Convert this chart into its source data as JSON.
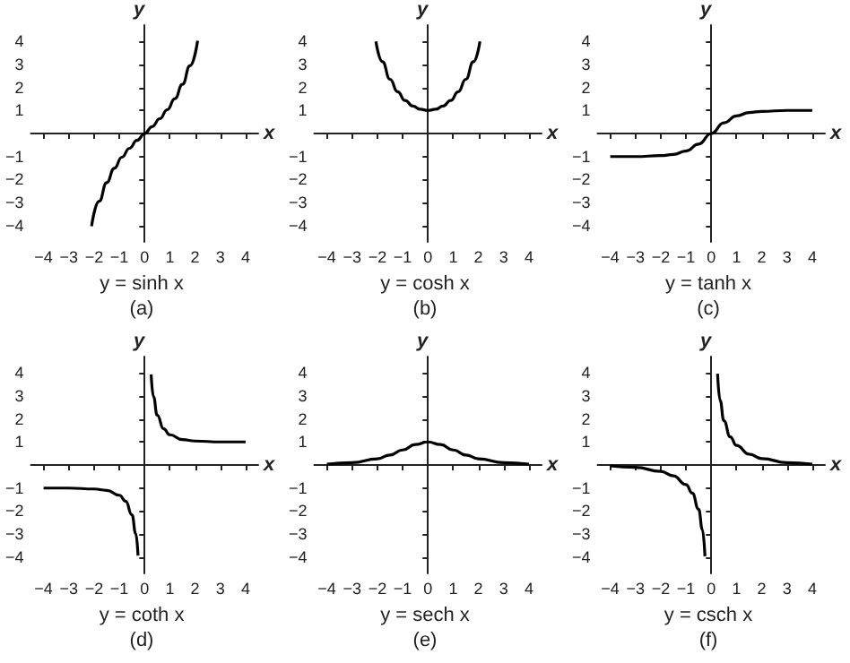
{
  "chart_data": [
    {
      "type": "line",
      "title": "y = sinh x",
      "subtitle": "(a)",
      "xlabel": "x",
      "ylabel": "y",
      "marker": "none",
      "xlim": [
        -4.5,
        4.5
      ],
      "ylim": [
        -4.7,
        4.7
      ],
      "xticks": [
        -4,
        -3,
        -2,
        -1,
        0,
        1,
        2,
        3,
        4
      ],
      "yticks": [
        -4,
        -3,
        -2,
        -1,
        1,
        2,
        3,
        4
      ],
      "x": [
        -2.1,
        -1.8,
        -1.5,
        -1.2,
        -0.9,
        -0.6,
        -0.3,
        0,
        0.3,
        0.6,
        0.9,
        1.2,
        1.5,
        1.8,
        2.1
      ],
      "series": [
        {
          "color": "#000000",
          "values": [
            -4.02,
            -2.94,
            -2.13,
            -1.51,
            -1.03,
            -0.64,
            -0.3,
            0,
            0.3,
            0.64,
            1.03,
            1.51,
            2.13,
            2.94,
            4.02
          ]
        }
      ]
    },
    {
      "type": "line",
      "title": "y = cosh x",
      "subtitle": "(b)",
      "xlabel": "x",
      "ylabel": "y",
      "marker": "none",
      "xlim": [
        -4.5,
        4.5
      ],
      "ylim": [
        -4.7,
        4.7
      ],
      "xticks": [
        -4,
        -3,
        -2,
        -1,
        0,
        1,
        2,
        3,
        4
      ],
      "yticks": [
        -4,
        -3,
        -2,
        -1,
        1,
        2,
        3,
        4
      ],
      "x": [
        -2.06,
        -1.8,
        -1.5,
        -1.2,
        -0.9,
        -0.6,
        -0.3,
        0,
        0.3,
        0.6,
        0.9,
        1.2,
        1.5,
        1.8,
        2.06
      ],
      "series": [
        {
          "color": "#000000",
          "values": [
            3.99,
            3.11,
            2.35,
            1.81,
            1.43,
            1.19,
            1.05,
            1,
            1.05,
            1.19,
            1.43,
            1.81,
            2.35,
            3.11,
            3.99
          ]
        }
      ]
    },
    {
      "type": "line",
      "title": "y = tanh x",
      "subtitle": "(c)",
      "xlabel": "x",
      "ylabel": "y",
      "marker": "none",
      "xlim": [
        -4.5,
        4.5
      ],
      "ylim": [
        -4.7,
        4.7
      ],
      "xticks": [
        -4,
        -3,
        -2,
        -1,
        0,
        1,
        2,
        3,
        4
      ],
      "yticks": [
        -4,
        -3,
        -2,
        -1,
        1,
        2,
        3,
        4
      ],
      "x": [
        -4,
        -3,
        -2,
        -1.5,
        -1,
        -0.5,
        0,
        0.5,
        1,
        1.5,
        2,
        3,
        4
      ],
      "series": [
        {
          "color": "#000000",
          "values": [
            -1,
            -1,
            -0.96,
            -0.91,
            -0.76,
            -0.46,
            0,
            0.46,
            0.76,
            0.91,
            0.96,
            1,
            1
          ]
        }
      ]
    },
    {
      "type": "line",
      "title": "y = coth x",
      "subtitle": "(d)",
      "xlabel": "x",
      "ylabel": "y",
      "marker": "none",
      "xlim": [
        -4.5,
        4.5
      ],
      "ylim": [
        -4.7,
        4.7
      ],
      "xticks": [
        -4,
        -3,
        -2,
        -1,
        0,
        1,
        2,
        3,
        4
      ],
      "yticks": [
        -4,
        -3,
        -2,
        -1,
        1,
        2,
        3,
        4
      ],
      "x": [
        -4,
        -3,
        -2,
        -1.5,
        -1,
        -0.75,
        -0.5,
        -0.35,
        -0.26,
        0,
        0.26,
        0.35,
        0.5,
        0.75,
        1,
        1.5,
        2,
        3,
        4
      ],
      "series": [
        {
          "color": "#000000",
          "values": [
            -1,
            -1,
            -1.04,
            -1.1,
            -1.31,
            -1.57,
            -2.16,
            -2.97,
            -3.93,
            null,
            3.93,
            2.97,
            2.16,
            1.57,
            1.31,
            1.1,
            1.04,
            1,
            1
          ]
        }
      ]
    },
    {
      "type": "line",
      "title": "y = sech x",
      "subtitle": "(e)",
      "xlabel": "x",
      "ylabel": "y",
      "marker": "none",
      "xlim": [
        -4.5,
        4.5
      ],
      "ylim": [
        -4.7,
        4.7
      ],
      "xticks": [
        -4,
        -3,
        -2,
        -1,
        0,
        1,
        2,
        3,
        4
      ],
      "yticks": [
        -4,
        -3,
        -2,
        -1,
        1,
        2,
        3,
        4
      ],
      "x": [
        -4,
        -3,
        -2,
        -1.5,
        -1,
        -0.5,
        0,
        0.5,
        1,
        1.5,
        2,
        3,
        4
      ],
      "series": [
        {
          "color": "#000000",
          "values": [
            0.04,
            0.1,
            0.27,
            0.43,
            0.65,
            0.89,
            1,
            0.89,
            0.65,
            0.43,
            0.27,
            0.1,
            0.04
          ]
        }
      ]
    },
    {
      "type": "line",
      "title": "y = csch x",
      "subtitle": "(f)",
      "xlabel": "x",
      "ylabel": "y",
      "marker": "none",
      "xlim": [
        -4.5,
        4.5
      ],
      "ylim": [
        -4.7,
        4.7
      ],
      "xticks": [
        -4,
        -3,
        -2,
        -1,
        0,
        1,
        2,
        3,
        4
      ],
      "yticks": [
        -4,
        -3,
        -2,
        -1,
        1,
        2,
        3,
        4
      ],
      "x": [
        -4,
        -3,
        -2,
        -1.5,
        -1,
        -0.75,
        -0.5,
        -0.35,
        -0.25,
        0,
        0.25,
        0.35,
        0.5,
        0.75,
        1,
        1.5,
        2,
        3,
        4
      ],
      "series": [
        {
          "color": "#000000",
          "values": [
            -0.04,
            -0.1,
            -0.28,
            -0.47,
            -0.85,
            -1.22,
            -1.92,
            -2.8,
            -3.96,
            null,
            3.96,
            2.8,
            1.92,
            1.22,
            0.85,
            0.47,
            0.28,
            0.1,
            0.04
          ]
        }
      ]
    }
  ]
}
